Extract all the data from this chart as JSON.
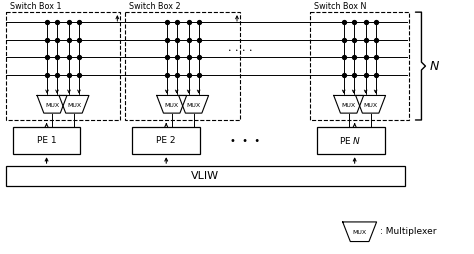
{
  "bg_color": "#ffffff",
  "line_color": "#000000",
  "figsize": [
    4.74,
    2.54
  ],
  "dpi": 100,
  "sb_labels": [
    "Switch Box 1",
    "Switch Box 2",
    "Switch Box N"
  ],
  "pe_labels": [
    "PE 1",
    "PE 2",
    "PE $N$"
  ],
  "vliw_label": "VLIW",
  "mux_label": "MUX",
  "multiplexer_note": ": Multiplexer",
  "N_label": "$N$",
  "dots_h": ". . . .",
  "dots_pe": "• • •"
}
